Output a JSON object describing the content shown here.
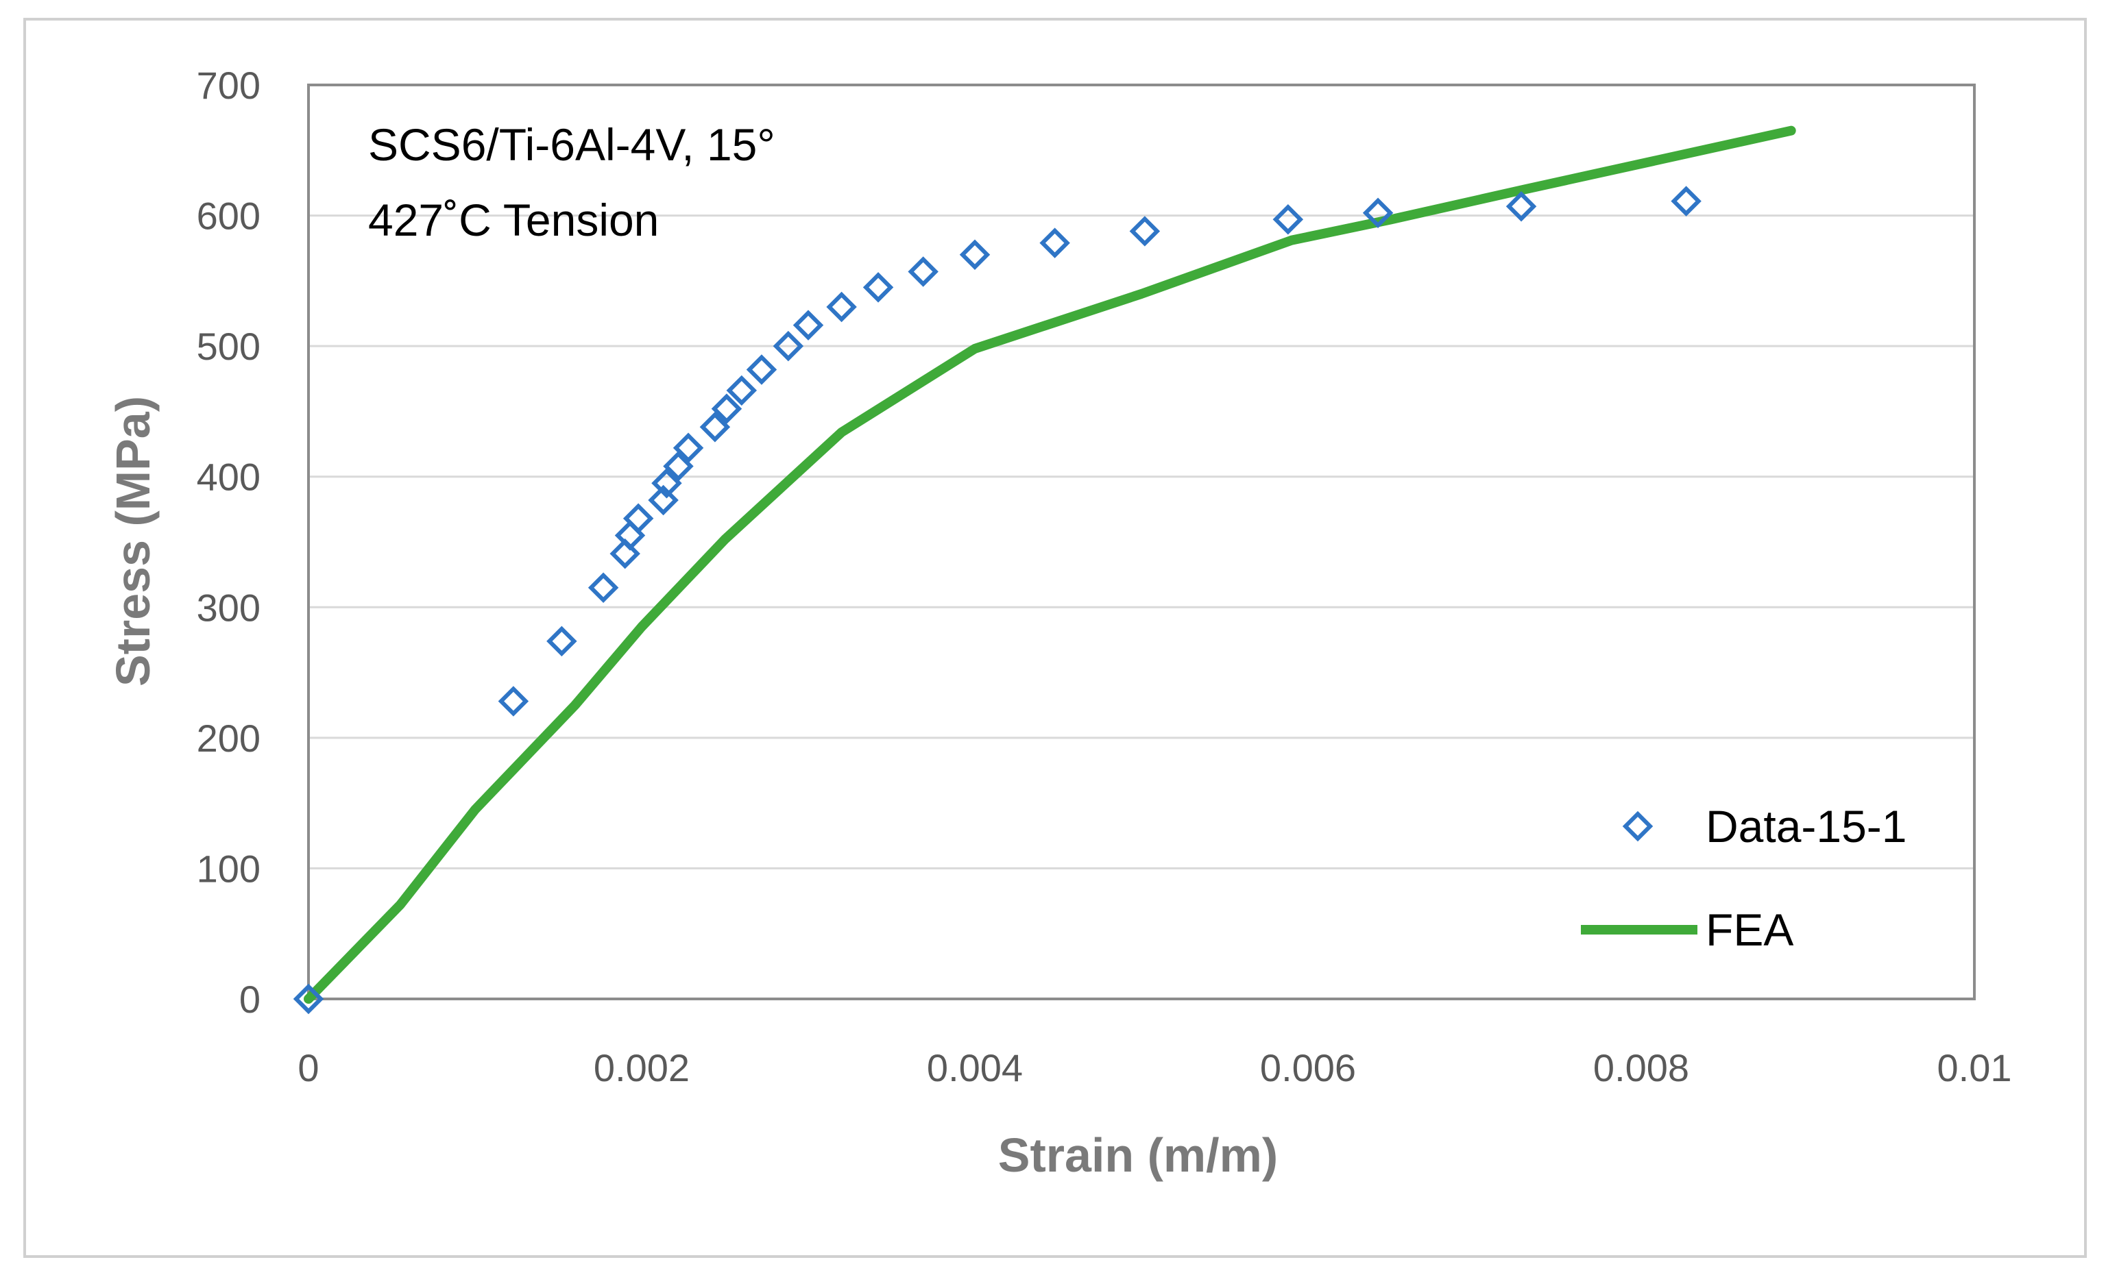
{
  "chart_data": {
    "type": "scatter",
    "title": "",
    "annotation_lines": [
      "SCS6/Ti-6Al-4V, 15°",
      "427˚C Tension"
    ],
    "xlabel": "Strain (m/m)",
    "ylabel": "Stress (MPa)",
    "xlim": [
      0,
      0.01
    ],
    "ylim": [
      0,
      700
    ],
    "x_ticks": [
      0,
      0.002,
      0.004,
      0.006,
      0.008,
      0.01
    ],
    "x_tick_labels": [
      "0",
      "0.002",
      "0.004",
      "0.006",
      "0.008",
      "0.01"
    ],
    "y_ticks": [
      0,
      100,
      200,
      300,
      400,
      500,
      600,
      700
    ],
    "y_tick_labels": [
      "0",
      "100",
      "200",
      "300",
      "400",
      "500",
      "600",
      "700"
    ],
    "grid": "horizontal",
    "legend_position": "bottom-right",
    "series": [
      {
        "name": "Data-15-1",
        "type": "scatter",
        "marker": "diamond-open",
        "color": "#2f75c6",
        "x": [
          0,
          0.00123,
          0.00152,
          0.00177,
          0.0019,
          0.00193,
          0.00198,
          0.00213,
          0.00215,
          0.00222,
          0.00228,
          0.00244,
          0.00251,
          0.0026,
          0.00272,
          0.00288,
          0.003,
          0.0032,
          0.00342,
          0.00369,
          0.004,
          0.00448,
          0.00502,
          0.00588,
          0.00642,
          0.00728,
          0.00827
        ],
        "y": [
          0,
          228,
          274,
          315,
          341,
          355,
          368,
          382,
          395,
          408,
          422,
          438,
          452,
          466,
          482,
          500,
          516,
          530,
          545,
          557,
          570,
          579,
          588,
          597,
          602,
          607,
          611
        ]
      },
      {
        "name": "FEA",
        "type": "line",
        "color": "#3faa39",
        "x": [
          0,
          0.00055,
          0.001,
          0.0016,
          0.002,
          0.0025,
          0.0032,
          0.004,
          0.005,
          0.0059,
          0.0065,
          0.0073,
          0.0089
        ],
        "y": [
          0,
          72,
          145,
          225,
          285,
          352,
          434,
          498,
          540,
          581,
          597,
          620,
          665
        ]
      }
    ]
  }
}
